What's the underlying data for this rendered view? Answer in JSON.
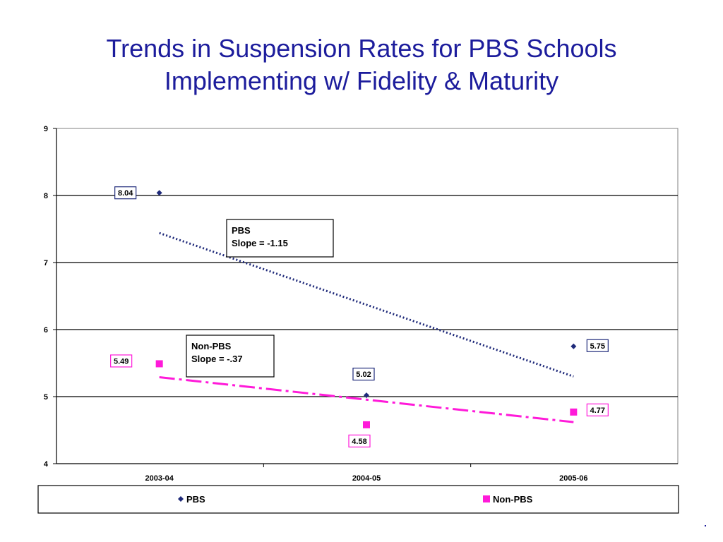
{
  "title": {
    "line1": "Trends in Suspension Rates for PBS Schools",
    "line2": "Implementing w/ Fidelity & Maturity"
  },
  "colors": {
    "title": "#1c1c9c",
    "pbs": "#1f2a7a",
    "non_pbs": "#ff1ad9",
    "gridline": "#000000"
  },
  "chart_data": {
    "type": "scatter",
    "categories": [
      "2003-04",
      "2004-05",
      "2005-06"
    ],
    "ylim": [
      4,
      9
    ],
    "yticks": [
      4,
      5,
      6,
      7,
      8,
      9
    ],
    "grid": true,
    "legend_position": "bottom",
    "series": [
      {
        "name": "PBS",
        "marker": "diamond",
        "values": [
          8.04,
          5.02,
          5.75
        ],
        "labels": [
          "8.04",
          "5.02",
          "5.75"
        ],
        "trendline": {
          "start": 7.44,
          "end": 5.3,
          "style": "dotted"
        }
      },
      {
        "name": "Non-PBS",
        "marker": "square",
        "values": [
          5.49,
          4.58,
          4.77
        ],
        "labels": [
          "5.49",
          "4.58",
          "4.77"
        ],
        "trendline": {
          "start": 5.29,
          "end": 4.62,
          "style": "dash-dot"
        }
      }
    ],
    "annotations": [
      {
        "series": "PBS",
        "lines": [
          "PBS",
          "Slope = -1.15"
        ]
      },
      {
        "series": "Non-PBS",
        "lines": [
          "Non-PBS",
          "Slope = -.37"
        ]
      }
    ]
  }
}
